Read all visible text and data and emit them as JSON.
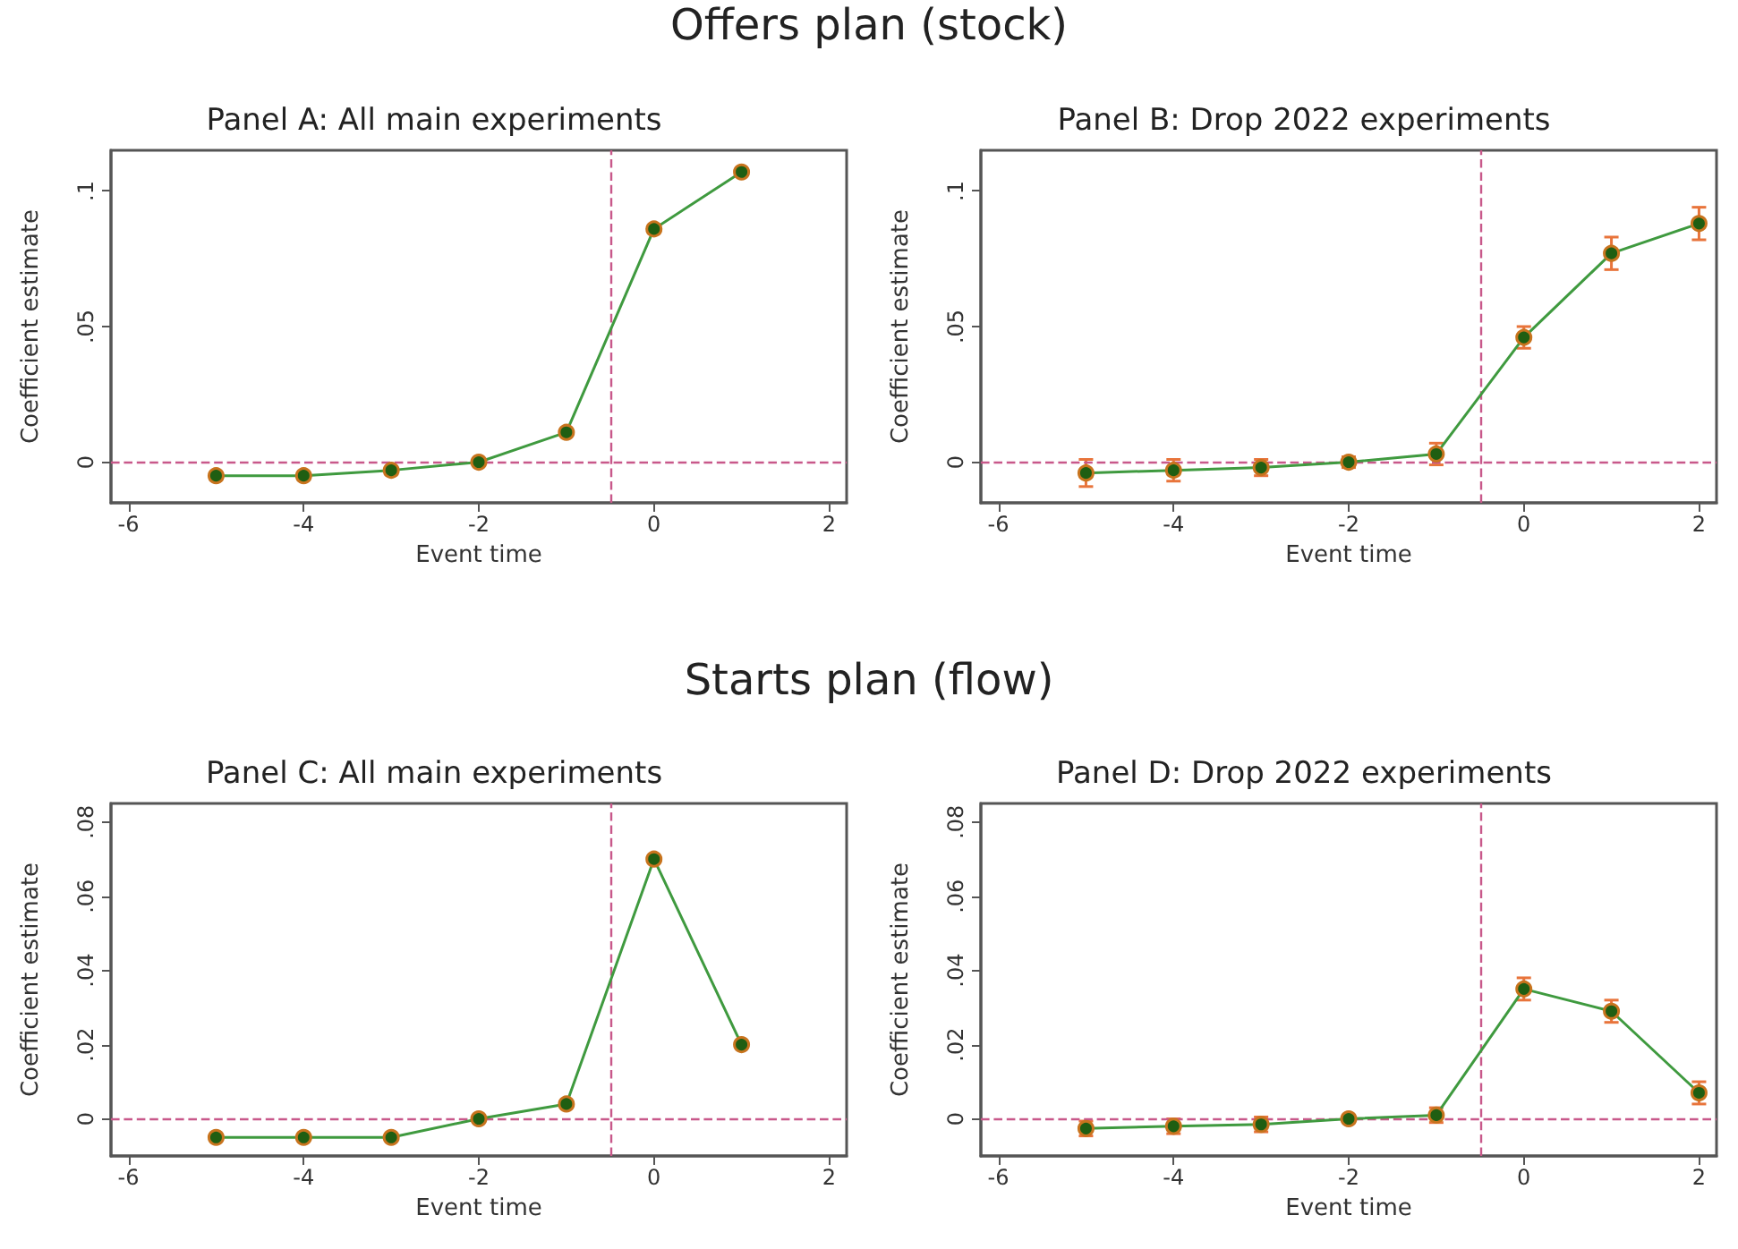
{
  "chart_data": [
    {
      "type": "line",
      "title": "Panel A: All main experiments",
      "annotations": [
        "Offers plan (stock)"
      ],
      "xlabel": "Event time",
      "ylabel": "Coefficient estimate",
      "x": [
        -5,
        -4,
        -3,
        -2,
        -1,
        0,
        1
      ],
      "series": [
        {
          "color": "#3f9a3f",
          "values": [
            -0.005,
            -0.005,
            -0.003,
            0,
            0.011,
            0.086,
            0.107
          ]
        }
      ],
      "xlim": [
        -6.2,
        2.2
      ],
      "xticks": [
        -6,
        -4,
        -2,
        0,
        2
      ],
      "ylim": [
        -0.015,
        0.115
      ],
      "yticks": [
        {
          "value": 0,
          "label": "0"
        },
        {
          "value": 0.05,
          "label": ".05"
        },
        {
          "value": 0.1,
          "label": ".1"
        }
      ],
      "ref_lines": [
        {
          "axis": "x",
          "value": -0.5,
          "color": "#c8588a",
          "line_style": "dashed"
        },
        {
          "axis": "y",
          "value": 0,
          "color": "#c8588a",
          "line_style": "dashed"
        }
      ],
      "marker": "circle",
      "line_style": "solid"
    },
    {
      "type": "line",
      "title": "Panel B: Drop 2022 experiments",
      "xlabel": "Event time",
      "ylabel": "Coefficient estimate",
      "x": [
        -5,
        -4,
        -3,
        -2,
        -1,
        0,
        1,
        2
      ],
      "series": [
        {
          "color": "#3f9a3f",
          "values": [
            -0.004,
            -0.003,
            -0.002,
            0,
            0.003,
            0.046,
            0.077,
            0.088
          ],
          "errors": [
            0.005,
            0.004,
            0.003,
            0.002,
            0.004,
            0.004,
            0.006,
            0.006
          ]
        }
      ],
      "xlim": [
        -6.2,
        2.2
      ],
      "xticks": [
        -6,
        -4,
        -2,
        0,
        2
      ],
      "ylim": [
        -0.015,
        0.115
      ],
      "yticks": [
        {
          "value": 0,
          "label": "0"
        },
        {
          "value": 0.05,
          "label": ".05"
        },
        {
          "value": 0.1,
          "label": ".1"
        }
      ],
      "ref_lines": [
        {
          "axis": "x",
          "value": -0.5,
          "color": "#c8588a",
          "line_style": "dashed"
        },
        {
          "axis": "y",
          "value": 0,
          "color": "#c8588a",
          "line_style": "dashed"
        }
      ],
      "marker": "circle",
      "line_style": "solid"
    },
    {
      "type": "line",
      "title": "Panel C: All main experiments",
      "annotations": [
        "Starts plan (flow)"
      ],
      "xlabel": "Event time",
      "ylabel": "Coefficient estimate",
      "x": [
        -5,
        -4,
        -3,
        -2,
        -1,
        0,
        1
      ],
      "series": [
        {
          "color": "#3f9a3f",
          "values": [
            -0.005,
            -0.005,
            -0.005,
            0,
            0.004,
            0.07,
            0.02
          ]
        }
      ],
      "xlim": [
        -6.2,
        2.2
      ],
      "xticks": [
        -6,
        -4,
        -2,
        0,
        2
      ],
      "ylim": [
        -0.01,
        0.085
      ],
      "yticks": [
        {
          "value": 0,
          "label": "0"
        },
        {
          "value": 0.02,
          "label": ".02"
        },
        {
          "value": 0.04,
          "label": ".04"
        },
        {
          "value": 0.06,
          "label": ".06"
        },
        {
          "value": 0.08,
          "label": ".08"
        }
      ],
      "ref_lines": [
        {
          "axis": "x",
          "value": -0.5,
          "color": "#c8588a",
          "line_style": "dashed"
        },
        {
          "axis": "y",
          "value": 0,
          "color": "#c8588a",
          "line_style": "dashed"
        }
      ],
      "marker": "circle",
      "line_style": "solid"
    },
    {
      "type": "line",
      "title": "Panel D: Drop 2022 experiments",
      "xlabel": "Event time",
      "ylabel": "Coefficient estimate",
      "x": [
        -5,
        -4,
        -3,
        -2,
        -1,
        0,
        1,
        2
      ],
      "series": [
        {
          "color": "#3f9a3f",
          "values": [
            -0.0026,
            -0.002,
            -0.0015,
            0,
            0.001,
            0.035,
            0.029,
            0.007
          ],
          "errors": [
            0.002,
            0.002,
            0.002,
            0.001,
            0.002,
            0.003,
            0.003,
            0.003
          ]
        }
      ],
      "xlim": [
        -6.2,
        2.2
      ],
      "xticks": [
        -6,
        -4,
        -2,
        0,
        2
      ],
      "ylim": [
        -0.01,
        0.085
      ],
      "yticks": [
        {
          "value": 0,
          "label": "0"
        },
        {
          "value": 0.02,
          "label": ".02"
        },
        {
          "value": 0.04,
          "label": ".04"
        },
        {
          "value": 0.06,
          "label": ".06"
        },
        {
          "value": 0.08,
          "label": ".08"
        }
      ],
      "ref_lines": [
        {
          "axis": "x",
          "value": -0.5,
          "color": "#c8588a",
          "line_style": "dashed"
        },
        {
          "axis": "y",
          "value": 0,
          "color": "#c8588a",
          "line_style": "dashed"
        }
      ],
      "marker": "circle",
      "line_style": "solid"
    }
  ]
}
